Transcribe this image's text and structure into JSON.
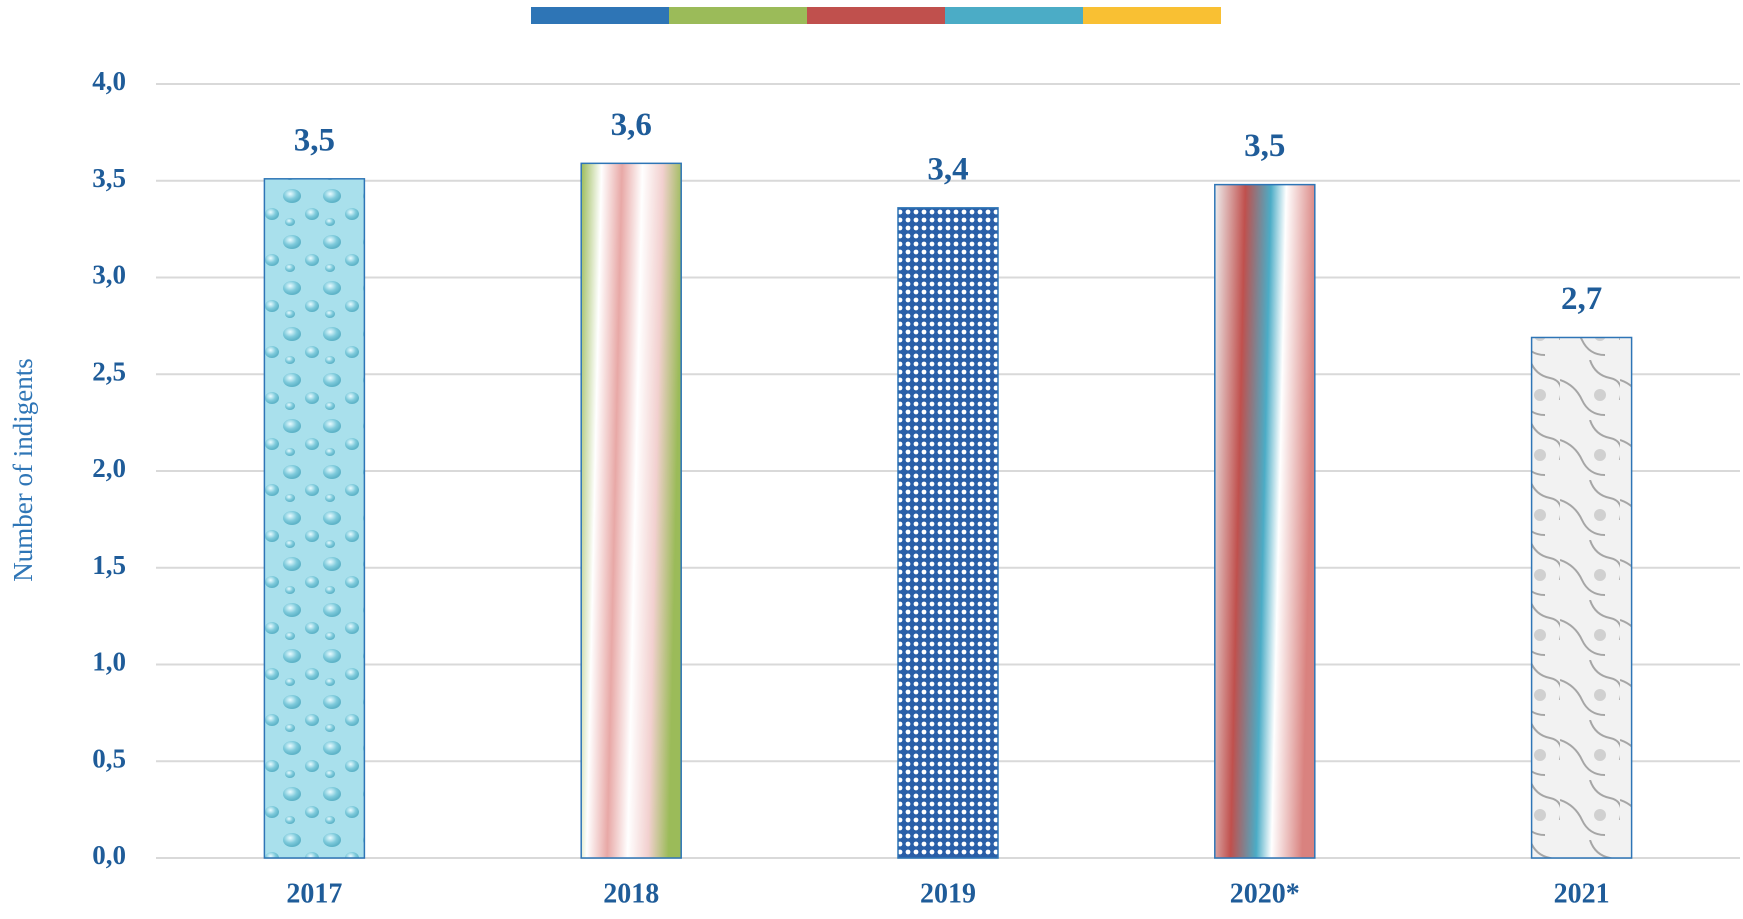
{
  "chart_data": {
    "type": "bar",
    "y_label": "Number of indigents",
    "categories": [
      "2017",
      "2018",
      "2019",
      "2020*",
      "2021"
    ],
    "values": [
      3.51,
      3.59,
      3.36,
      3.48,
      2.69
    ],
    "value_labels": [
      "3,5",
      "3,6",
      "3,4",
      "3,5",
      "2,7"
    ],
    "ylim": [
      0,
      4
    ],
    "yticks": [
      {
        "value": 0,
        "label": "0,0"
      },
      {
        "value": 0.5,
        "label": "0,5"
      },
      {
        "value": 1,
        "label": "1,0"
      },
      {
        "value": 1.5,
        "label": "1,5"
      },
      {
        "value": 2,
        "label": "2,0"
      },
      {
        "value": 2.5,
        "label": "2,5"
      },
      {
        "value": 3,
        "label": "3,0"
      },
      {
        "value": 3.5,
        "label": "3,5"
      },
      {
        "value": 4,
        "label": "4,0"
      }
    ],
    "grid": true
  }
}
